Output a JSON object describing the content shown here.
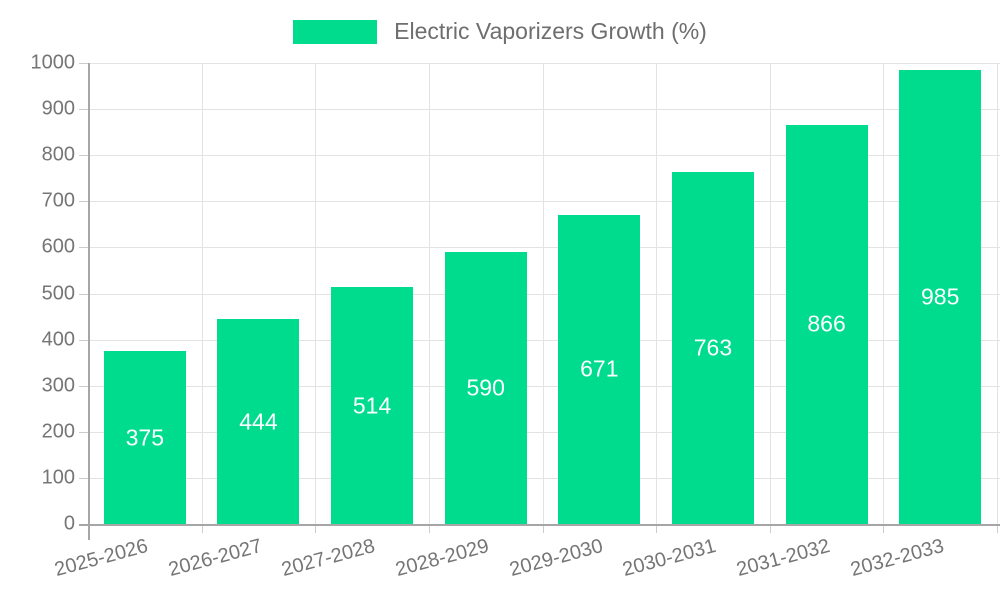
{
  "legend": {
    "label": "Electric Vaporizers Growth (%)"
  },
  "chart_data": {
    "type": "bar",
    "title": "Electric Vaporizers Growth (%)",
    "legend_entries": [
      "Electric Vaporizers Growth (%)"
    ],
    "legend_position": "top-center",
    "categories": [
      "2025-2026",
      "2026-2027",
      "2027-2028",
      "2028-2029",
      "2029-2030",
      "2030-2031",
      "2031-2032",
      "2032-2033"
    ],
    "values": [
      375,
      444,
      514,
      590,
      671,
      763,
      866,
      985
    ],
    "value_labels_shown": true,
    "value_label_position": "inside-center",
    "xlabel": "",
    "ylabel": "",
    "ylim": [
      0,
      1000
    ],
    "yticks": [
      0,
      100,
      200,
      300,
      400,
      500,
      600,
      700,
      800,
      900,
      1000
    ],
    "grid": true,
    "x_label_rotation_deg": -15
  },
  "colors": {
    "bar": "#00dc8e",
    "grid": "#e3e3e3",
    "axis": "#a6a6a6",
    "tick": "#cccccc",
    "tick_label": "#757575",
    "legend_text": "#6e6e6e",
    "value_label": "#ffffff",
    "background": "#ffffff"
  }
}
